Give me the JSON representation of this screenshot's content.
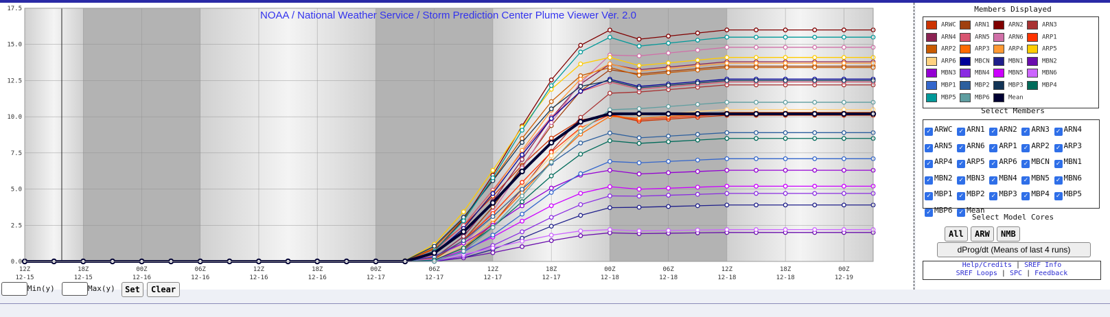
{
  "header": {
    "title": "NOAA / National Weather Service / Storm Prediction Center Plume Viewer Ver. 2.0"
  },
  "chart_data": {
    "type": "line",
    "title": "NOAA / National Weather Service / Storm Prediction Center Plume Viewer Ver. 2.0",
    "ylim": [
      0,
      17.5
    ],
    "yticks": [
      "0.0",
      "2.5",
      "5.0",
      "7.5",
      "10.0",
      "12.5",
      "15.0",
      "17.5"
    ],
    "xticks": [
      {
        "hour": "12Z",
        "date": "12-15"
      },
      {
        "hour": "18Z",
        "date": "12-15"
      },
      {
        "hour": "00Z",
        "date": "12-16"
      },
      {
        "hour": "06Z",
        "date": "12-16"
      },
      {
        "hour": "12Z",
        "date": "12-16"
      },
      {
        "hour": "18Z",
        "date": "12-16"
      },
      {
        "hour": "00Z",
        "date": "12-17"
      },
      {
        "hour": "06Z",
        "date": "12-17"
      },
      {
        "hour": "12Z",
        "date": "12-17"
      },
      {
        "hour": "18Z",
        "date": "12-17"
      },
      {
        "hour": "00Z",
        "date": "12-18"
      },
      {
        "hour": "06Z",
        "date": "12-18"
      },
      {
        "hour": "12Z",
        "date": "12-18"
      },
      {
        "hour": "18Z",
        "date": "12-18"
      },
      {
        "hour": "00Z",
        "date": "12-19"
      }
    ],
    "x_hours": [
      0,
      3,
      6,
      9,
      12,
      15,
      18,
      21,
      24,
      27,
      30,
      33,
      36,
      39,
      42,
      45,
      48,
      51,
      54,
      57,
      60,
      63,
      66,
      69,
      72,
      75,
      78,
      81,
      84,
      87
    ],
    "night_shading": [
      [
        6,
        18
      ],
      [
        36,
        48
      ],
      [
        60,
        72
      ]
    ],
    "vertical_marker_hour": 3.8,
    "grid": true,
    "series": [
      {
        "name": "ARWC",
        "color": "#cc3300",
        "final": 10.1
      },
      {
        "name": "ARN1",
        "color": "#a0400f",
        "final": 13.5
      },
      {
        "name": "ARN2",
        "color": "#800000",
        "final": 16.0
      },
      {
        "name": "ARN3",
        "color": "#a83232",
        "final": 12.2
      },
      {
        "name": "ARN4",
        "color": "#8b2252",
        "final": 13.8
      },
      {
        "name": "ARN5",
        "color": "#d85570",
        "final": 12.4
      },
      {
        "name": "ARN6",
        "color": "#d070a8",
        "final": 14.8
      },
      {
        "name": "ARP1",
        "color": "#ff3300",
        "final": 10.2
      },
      {
        "name": "ARP2",
        "color": "#c85a00",
        "final": 13.4
      },
      {
        "name": "ARP3",
        "color": "#ff6a00",
        "final": 10.3
      },
      {
        "name": "ARP4",
        "color": "#ff9933",
        "final": 13.7
      },
      {
        "name": "ARP5",
        "color": "#ffcc00",
        "final": 14.1
      },
      {
        "name": "ARP6",
        "color": "#ffd27f",
        "final": 10.5
      },
      {
        "name": "MBCN",
        "color": "#000099",
        "final": 12.6
      },
      {
        "name": "MBN1",
        "color": "#1f1f8a",
        "final": 3.9
      },
      {
        "name": "MBN2",
        "color": "#6a0dad",
        "final": 2.0
      },
      {
        "name": "MBN3",
        "color": "#9400d3",
        "final": 6.3
      },
      {
        "name": "MBN4",
        "color": "#8a2be2",
        "final": 4.7
      },
      {
        "name": "MBN5",
        "color": "#cc00ff",
        "final": 5.2
      },
      {
        "name": "MBN6",
        "color": "#cc66ff",
        "final": 2.2
      },
      {
        "name": "MBP1",
        "color": "#3366cc",
        "final": 7.1
      },
      {
        "name": "MBP2",
        "color": "#2c5f9e",
        "final": 8.9
      },
      {
        "name": "MBP3",
        "color": "#123456",
        "final": 12.5
      },
      {
        "name": "MBP4",
        "color": "#006b5a",
        "final": 8.5
      },
      {
        "name": "MBP5",
        "color": "#009999",
        "final": 15.5
      },
      {
        "name": "MBP6",
        "color": "#5f9ea0",
        "final": 11.0
      },
      {
        "name": "Mean",
        "color": "#000033",
        "final": 10.2
      }
    ]
  },
  "sidebar": {
    "members_displayed_title": "Members Displayed",
    "select_members_title": "Select Members",
    "select_model_cores_title": "Select Model Cores",
    "core_buttons": [
      "All",
      "ARW",
      "NMB"
    ],
    "dprog_button": "dProg/dt (Means of last 4 runs)",
    "links": {
      "help": "Help/Credits",
      "sref_info": "SREF Info",
      "sref_loops": "SREF Loops",
      "spc": "SPC",
      "feedback": "Feedback"
    },
    "separator": "|"
  },
  "bottom": {
    "min_label": "Min(y)",
    "max_label": "Max(y)",
    "set_label": "Set",
    "clear_label": "Clear"
  }
}
